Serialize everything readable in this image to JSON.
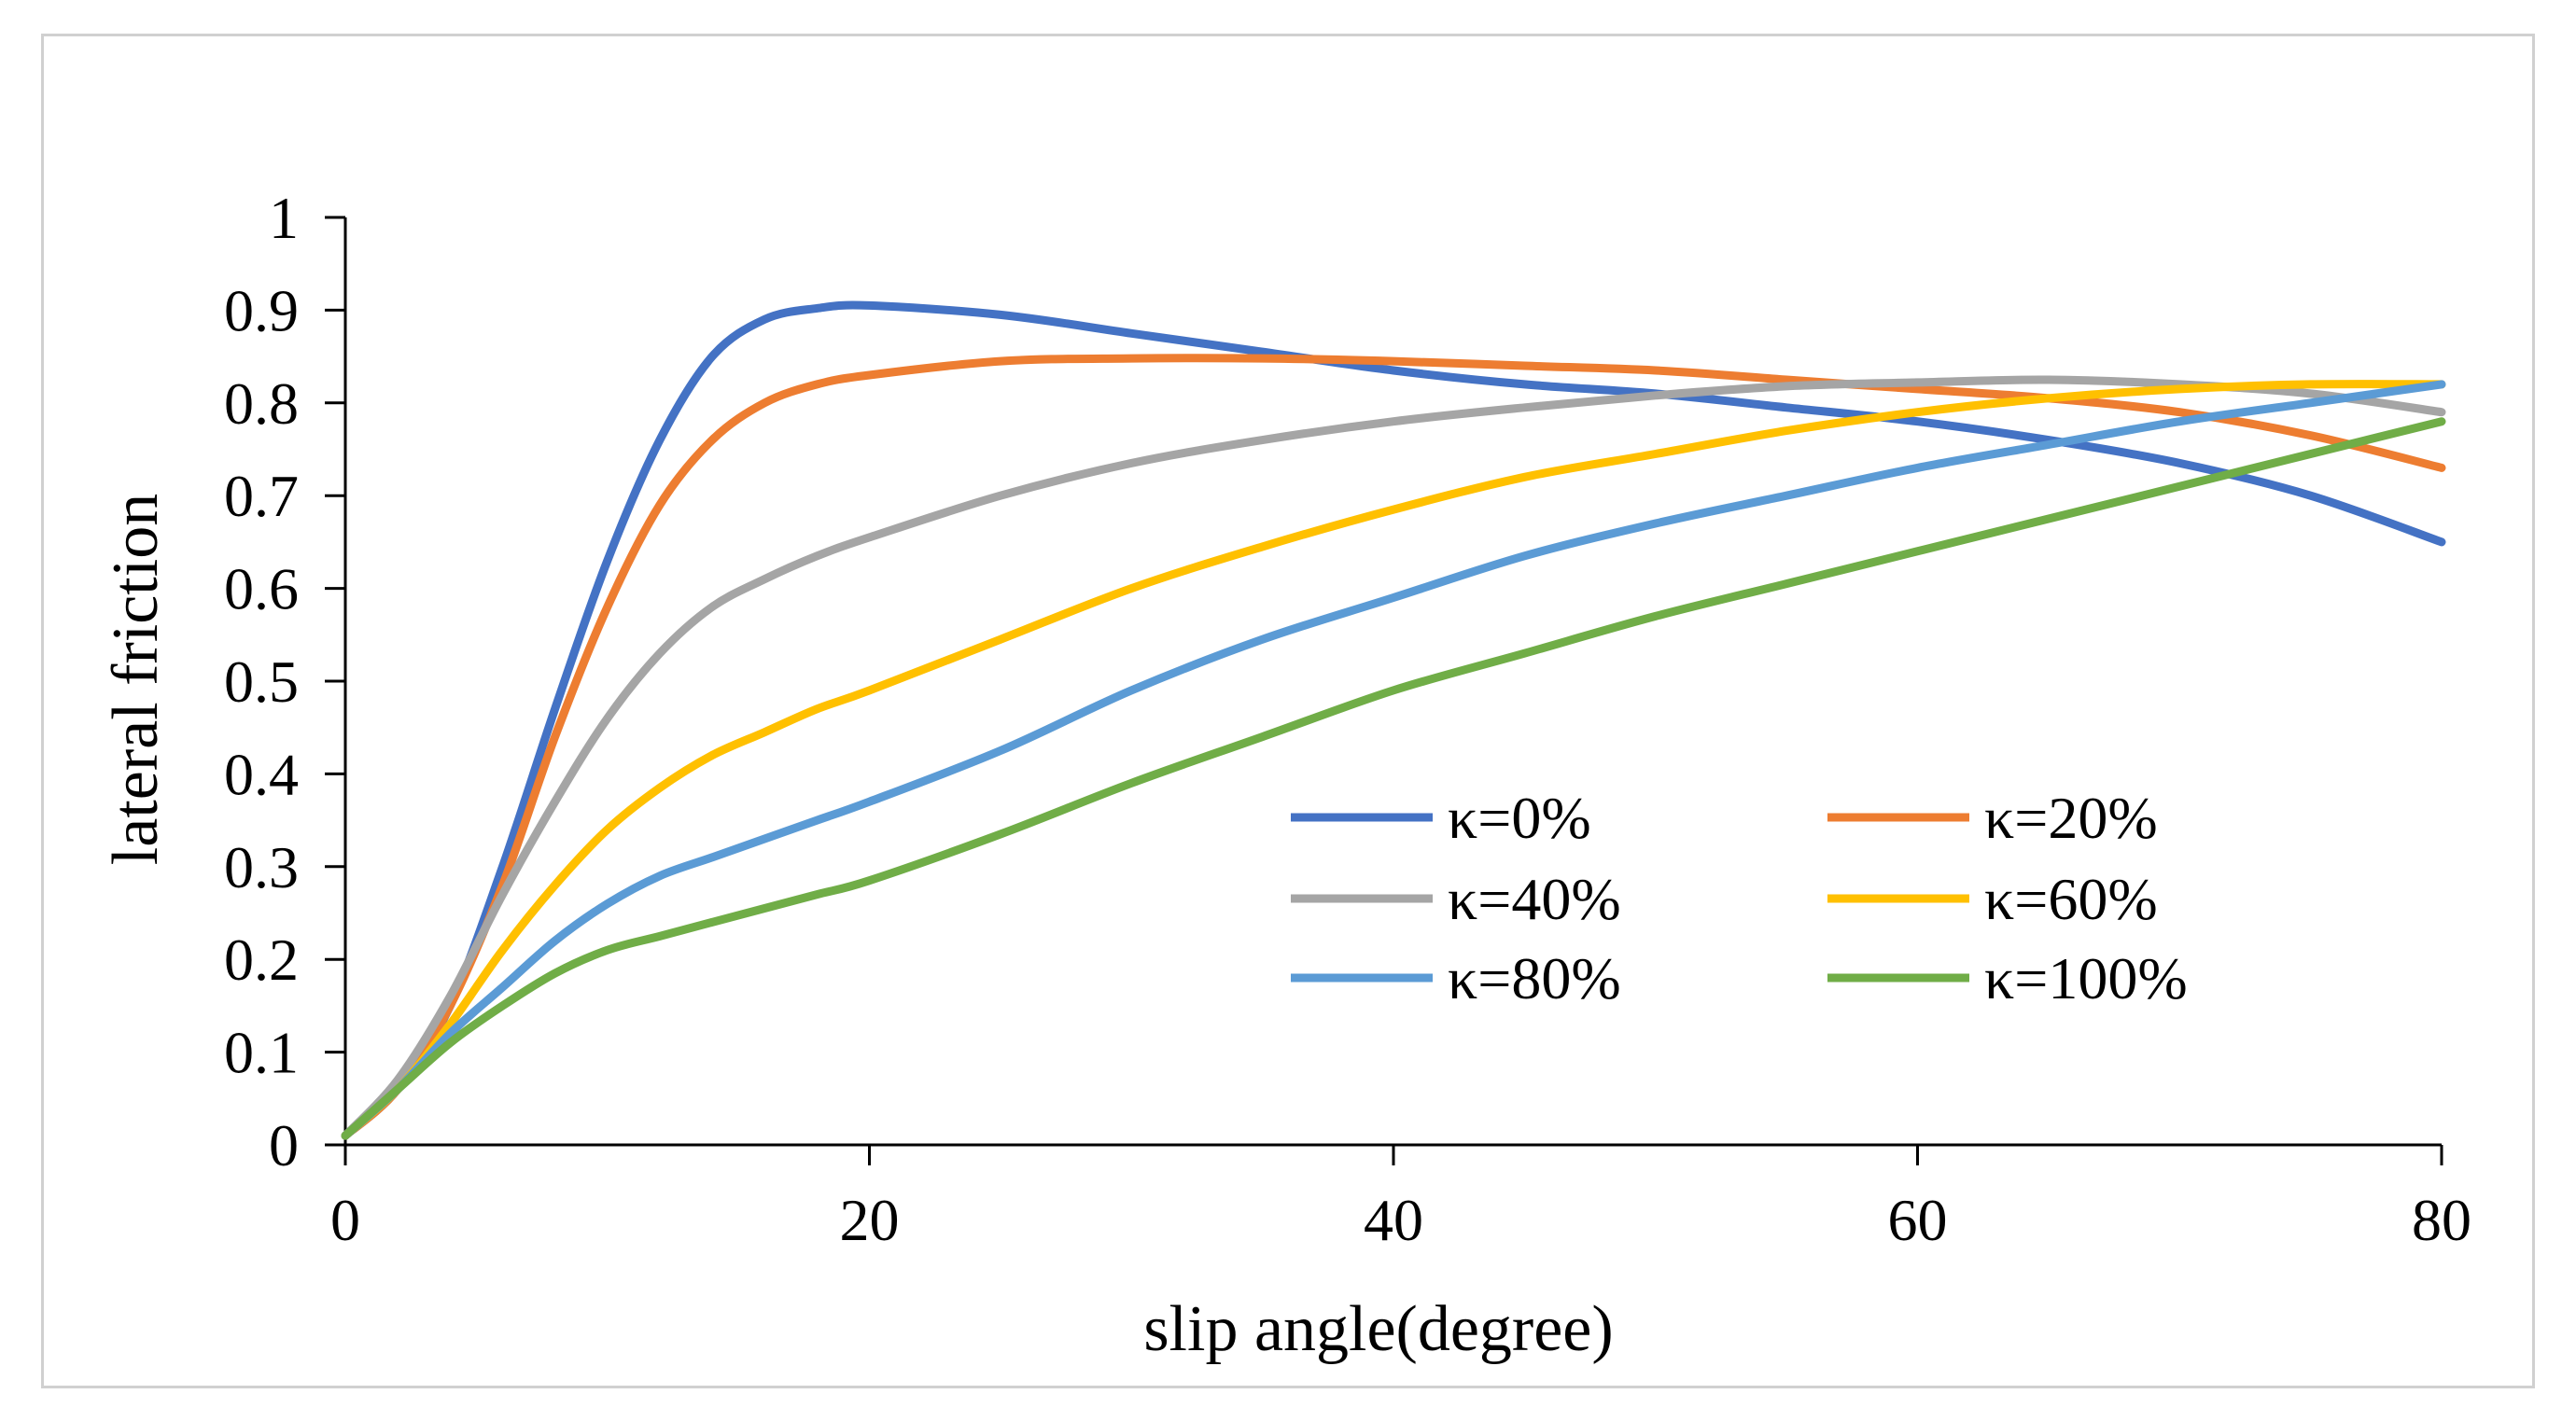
{
  "chart_data": {
    "type": "line",
    "title": "",
    "xlabel": "slip angle(degree)",
    "ylabel": "lateral friction",
    "xlim": [
      0,
      80
    ],
    "ylim": [
      0,
      1
    ],
    "xticks": [
      0,
      20,
      40,
      60,
      80
    ],
    "xtick_labels": [
      "0",
      "20",
      "40",
      "60",
      "80"
    ],
    "yticks": [
      0,
      0.1,
      0.2,
      0.3,
      0.4,
      0.5,
      0.6,
      0.7,
      0.8,
      0.9,
      1
    ],
    "ytick_labels": [
      "0",
      "0.1",
      "0.2",
      "0.3",
      "0.4",
      "0.5",
      "0.6",
      "0.7",
      "0.8",
      "0.9",
      "1"
    ],
    "grid": false,
    "legend_position": "lower-right, two columns",
    "x": [
      0,
      2,
      4,
      6,
      8,
      10,
      12,
      14,
      16,
      18,
      20,
      25,
      30,
      35,
      40,
      45,
      50,
      55,
      60,
      65,
      70,
      75,
      80
    ],
    "series": [
      {
        "name": "κ=0%",
        "color": "#4472C4",
        "values": [
          0.01,
          0.06,
          0.15,
          0.3,
          0.47,
          0.63,
          0.76,
          0.85,
          0.89,
          0.902,
          0.905,
          0.895,
          0.875,
          0.855,
          0.835,
          0.82,
          0.81,
          0.795,
          0.78,
          0.76,
          0.735,
          0.7,
          0.65
        ]
      },
      {
        "name": "κ=20%",
        "color": "#ED7D31",
        "values": [
          0.01,
          0.06,
          0.15,
          0.28,
          0.44,
          0.58,
          0.69,
          0.76,
          0.8,
          0.82,
          0.83,
          0.845,
          0.848,
          0.848,
          0.845,
          0.84,
          0.835,
          0.825,
          0.815,
          0.805,
          0.79,
          0.765,
          0.73
        ]
      },
      {
        "name": "κ=40%",
        "color": "#A5A5A5",
        "values": [
          0.01,
          0.07,
          0.16,
          0.27,
          0.37,
          0.46,
          0.53,
          0.58,
          0.61,
          0.635,
          0.655,
          0.7,
          0.735,
          0.76,
          0.78,
          0.795,
          0.808,
          0.818,
          0.822,
          0.825,
          0.82,
          0.81,
          0.79
        ]
      },
      {
        "name": "κ=60%",
        "color": "#FFC000",
        "values": [
          0.01,
          0.06,
          0.13,
          0.21,
          0.28,
          0.34,
          0.385,
          0.42,
          0.445,
          0.47,
          0.49,
          0.545,
          0.6,
          0.645,
          0.685,
          0.72,
          0.745,
          0.77,
          0.79,
          0.805,
          0.815,
          0.82,
          0.82
        ]
      },
      {
        "name": "κ=80%",
        "color": "#5B9BD5",
        "values": [
          0.01,
          0.06,
          0.12,
          0.17,
          0.22,
          0.26,
          0.29,
          0.31,
          0.33,
          0.35,
          0.37,
          0.425,
          0.49,
          0.545,
          0.59,
          0.635,
          0.67,
          0.7,
          0.73,
          0.755,
          0.78,
          0.8,
          0.82
        ]
      },
      {
        "name": "κ=100%",
        "color": "#70AD47",
        "values": [
          0.01,
          0.06,
          0.11,
          0.15,
          0.185,
          0.21,
          0.225,
          0.24,
          0.255,
          0.27,
          0.285,
          0.335,
          0.39,
          0.44,
          0.49,
          0.53,
          0.57,
          0.605,
          0.64,
          0.675,
          0.71,
          0.745,
          0.78
        ]
      }
    ]
  }
}
